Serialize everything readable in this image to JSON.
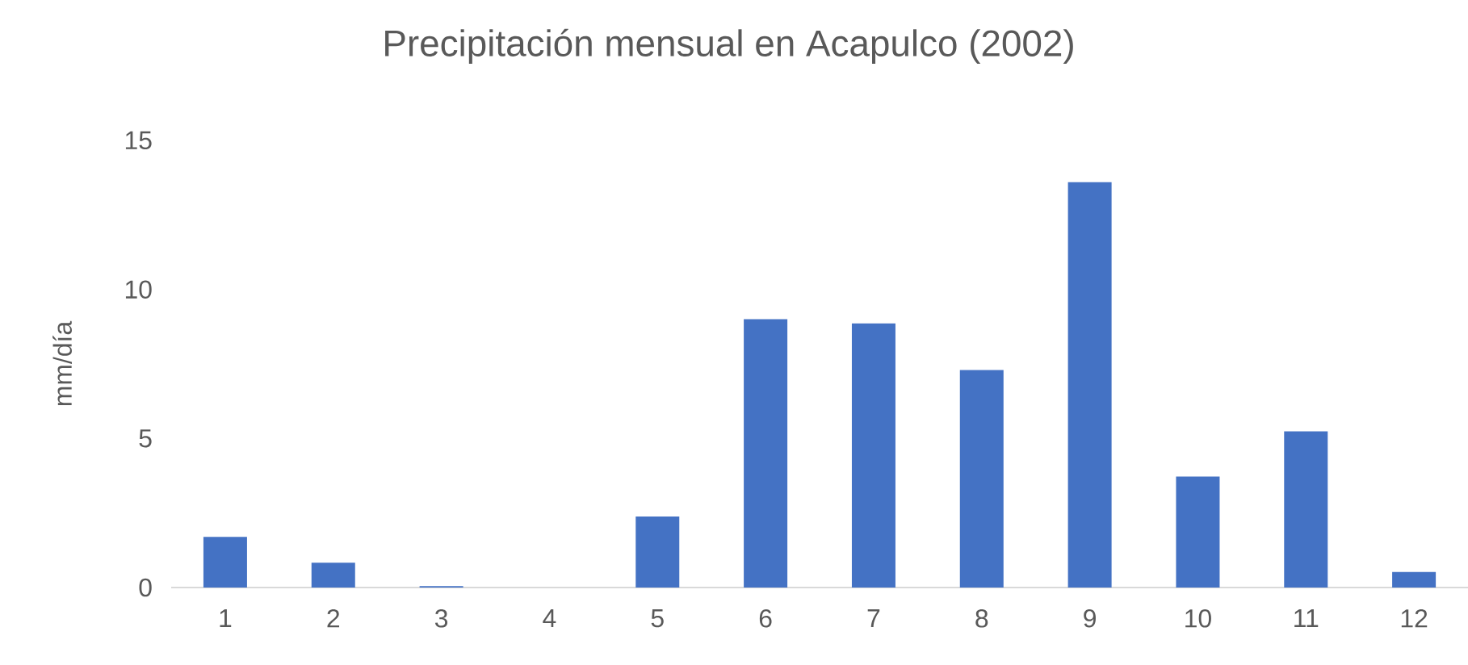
{
  "chart_data": {
    "type": "bar",
    "title": "Precipitación mensual en Acapulco (2002)",
    "ylabel": "mm/día",
    "categories": [
      "1",
      "2",
      "3",
      "4",
      "5",
      "6",
      "7",
      "8",
      "9",
      "10",
      "11",
      "12"
    ],
    "values": [
      1.7,
      0.83,
      0.05,
      0,
      2.38,
      9.0,
      8.86,
      7.3,
      13.6,
      3.72,
      5.24,
      0.52
    ],
    "color": "#4472c4",
    "ylim": [
      0,
      15
    ],
    "yticks": [
      0,
      5,
      10,
      15
    ]
  }
}
